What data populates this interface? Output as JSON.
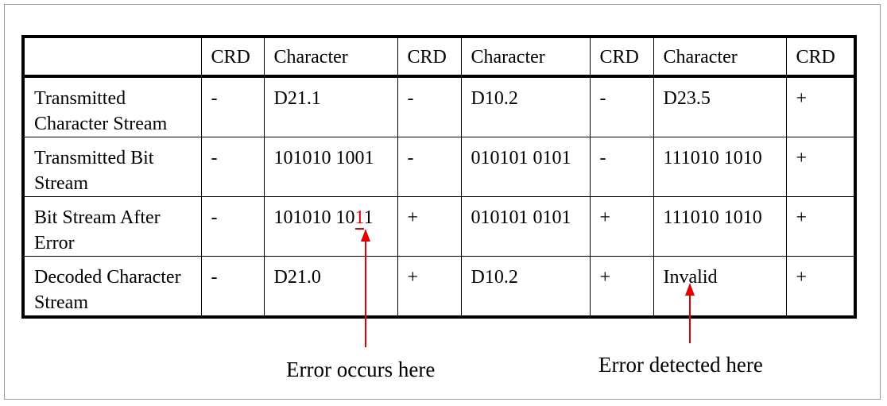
{
  "table": {
    "header": [
      "",
      "CRD",
      "Character",
      "CRD",
      "Character",
      "CRD",
      "Character",
      "CRD"
    ],
    "rows": [
      {
        "label": "Transmitted Character Stream",
        "cells": [
          "-",
          "D21.1",
          "-",
          "D10.2",
          "-",
          "D23.5",
          "+"
        ]
      },
      {
        "label": "Transmitted Bit Stream",
        "cells": [
          "-",
          "101010 1001",
          "-",
          "010101 0101",
          "-",
          "111010 1010",
          "+"
        ]
      },
      {
        "label": "Bit Stream After Error",
        "cells": [
          "-",
          "101010 1011",
          "+",
          "010101 0101",
          "+",
          "111010 1010",
          "+"
        ]
      },
      {
        "label": "Decoded Character Stream",
        "cells": [
          "-",
          "D21.0",
          "+",
          "D10.2",
          "+",
          "Invalid",
          "+"
        ]
      }
    ],
    "error_bit": {
      "prefix": "101010 10",
      "bit": "1",
      "suffix": "1"
    }
  },
  "annotations": {
    "error_occurs": "Error occurs here",
    "error_detected": "Error detected here"
  },
  "colors": {
    "arrow": "#e00000",
    "error_bit": "#e00000"
  }
}
